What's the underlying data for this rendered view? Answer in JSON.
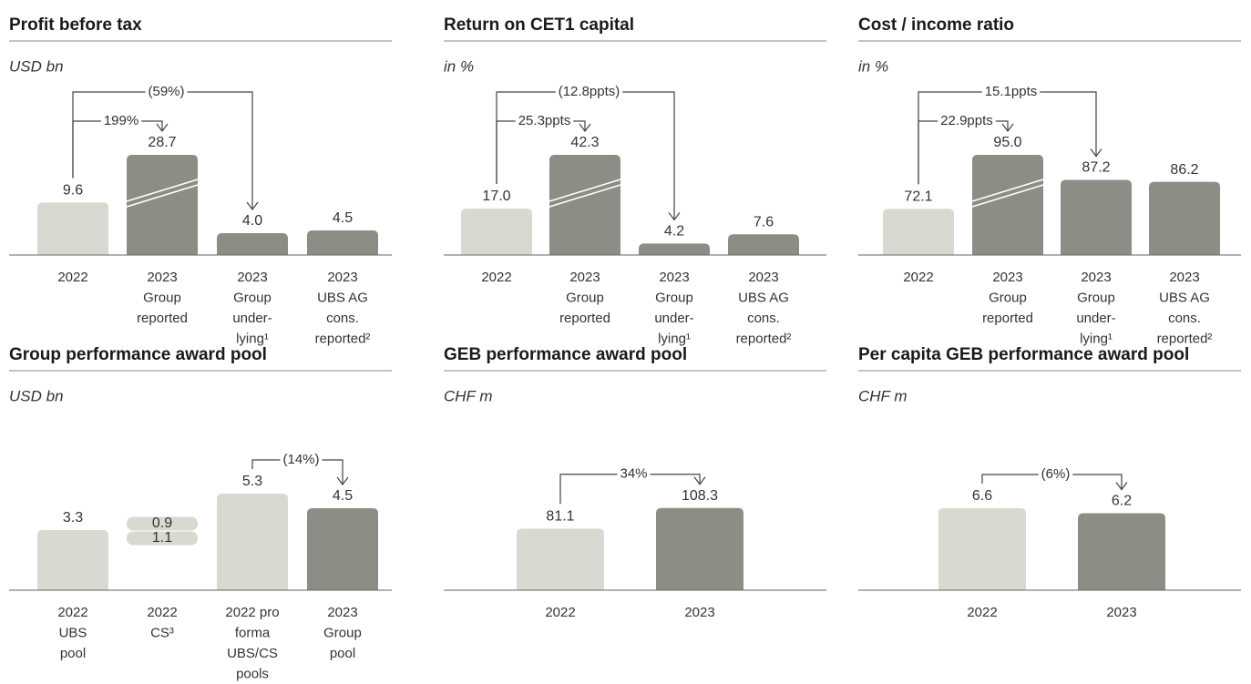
{
  "chart_data": [
    {
      "type": "bar",
      "title": "Profit before tax",
      "subtitle": "USD bn",
      "categories": [
        [
          "2022"
        ],
        [
          "2023",
          "Group",
          "reported"
        ],
        [
          "2023",
          "Group",
          "under-",
          "lying¹"
        ],
        [
          "2023",
          "UBS AG",
          "cons.",
          "reported²"
        ]
      ],
      "values": [
        9.6,
        28.7,
        4.0,
        4.5
      ],
      "value_labels": [
        "9.6",
        "28.7",
        "4.0",
        "4.5"
      ],
      "colors": [
        "#d9d9d1",
        "#8d8d85",
        "#8d8d85",
        "#8d8d85"
      ],
      "broken": [
        false,
        true,
        false,
        false
      ],
      "ylim": [
        0,
        20
      ],
      "changes": [
        {
          "from": 0,
          "to": 1,
          "label": "199%"
        },
        {
          "from": 0,
          "to": 2,
          "label": "(59%)"
        }
      ]
    },
    {
      "type": "bar",
      "title": "Return on CET1 capital",
      "subtitle": "in %",
      "categories": [
        [
          "2022"
        ],
        [
          "2023",
          "Group",
          "reported"
        ],
        [
          "2023",
          "Group",
          "under-",
          "lying¹"
        ],
        [
          "2023",
          "UBS AG",
          "cons.",
          "reported²"
        ]
      ],
      "values": [
        17.0,
        42.3,
        4.2,
        7.6
      ],
      "value_labels": [
        "17.0",
        "42.3",
        "4.2",
        "7.6"
      ],
      "colors": [
        "#d9d9d1",
        "#8d8d85",
        "#8d8d85",
        "#8d8d85"
      ],
      "broken": [
        false,
        true,
        false,
        false
      ],
      "ylim": [
        0,
        40
      ],
      "changes": [
        {
          "from": 0,
          "to": 1,
          "label": "25.3ppts"
        },
        {
          "from": 0,
          "to": 2,
          "label": "(12.8ppts)"
        }
      ]
    },
    {
      "type": "bar",
      "title": "Cost / income ratio",
      "subtitle": "in %",
      "categories": [
        [
          "2022"
        ],
        [
          "2023",
          "Group",
          "reported"
        ],
        [
          "2023",
          "Group",
          "under-",
          "lying¹"
        ],
        [
          "2023",
          "UBS AG",
          "cons.",
          "reported²"
        ]
      ],
      "values": [
        72.1,
        95.0,
        87.2,
        86.2
      ],
      "value_labels": [
        "72.1",
        "95.0",
        "87.2",
        "86.2"
      ],
      "colors": [
        "#d9d9d1",
        "#8d8d85",
        "#8d8d85",
        "#8d8d85"
      ],
      "broken": [
        false,
        true,
        false,
        false
      ],
      "ylim": [
        48,
        105
      ],
      "changes": [
        {
          "from": 0,
          "to": 1,
          "label": "22.9ppts"
        },
        {
          "from": 0,
          "to": 2,
          "label": "15.1ppts"
        }
      ]
    },
    {
      "type": "bar",
      "title": "Group performance award pool",
      "subtitle": "USD bn",
      "categories": [
        [
          "2022",
          "UBS",
          "pool"
        ],
        [
          "2022",
          "CS³"
        ],
        [
          "2022 pro",
          "forma",
          "UBS/CS",
          "pools"
        ],
        [
          "2023",
          "Group",
          "pool"
        ]
      ],
      "values": [
        3.3,
        null,
        5.3,
        4.5
      ],
      "value_labels": [
        "3.3",
        null,
        "5.3",
        "4.5"
      ],
      "segments": [
        0.9,
        1.1
      ],
      "colors": [
        "#d9d9d1",
        "#d9d9d1",
        "#d9d9d1",
        "#8d8d85"
      ],
      "ylim": [
        0,
        6
      ],
      "changes": [
        {
          "from": 2,
          "to": 3,
          "label": "(14%)"
        }
      ]
    },
    {
      "type": "bar",
      "title": "GEB performance award pool",
      "subtitle": "CHF m",
      "categories": [
        [
          "2022"
        ],
        [
          "2023"
        ]
      ],
      "values": [
        81.1,
        108.3
      ],
      "value_labels": [
        "81.1",
        "108.3"
      ],
      "colors": [
        "#d9d9d1",
        "#8d8d85"
      ],
      "ylim": [
        0,
        144
      ],
      "changes": [
        {
          "from": 0,
          "to": 1,
          "label": "34%"
        }
      ]
    },
    {
      "type": "bar",
      "title": "Per capita GEB performance award pool",
      "subtitle": "CHF m",
      "categories": [
        [
          "2022"
        ],
        [
          "2023"
        ]
      ],
      "values": [
        6.6,
        6.2
      ],
      "value_labels": [
        "6.6",
        "6.2"
      ],
      "colors": [
        "#d9d9d1",
        "#8d8d85"
      ],
      "ylim": [
        0,
        8.8
      ],
      "changes": [
        {
          "from": 0,
          "to": 1,
          "label": "(6%)"
        }
      ]
    }
  ]
}
